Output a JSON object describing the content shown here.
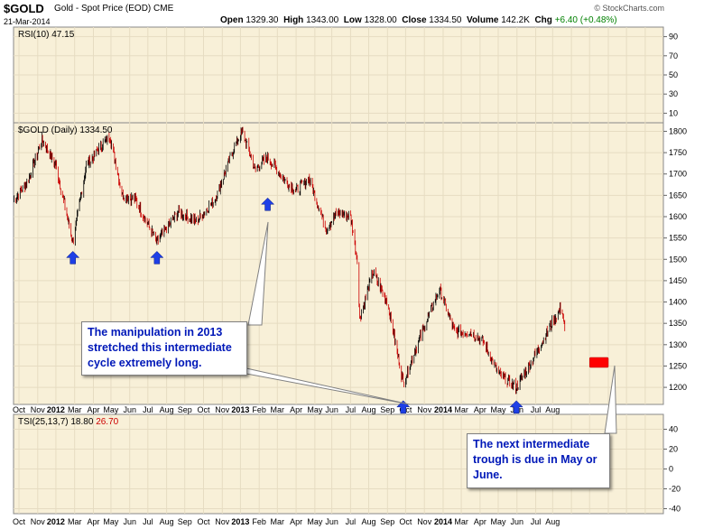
{
  "header": {
    "symbol": "$GOLD",
    "name": "Gold - Spot Price (EOD)",
    "exchange": "CME",
    "date": "21-Mar-2014",
    "open_label": "Open",
    "open": "1329.30",
    "high_label": "High",
    "high": "1343.00",
    "low_label": "Low",
    "low": "1328.00",
    "close_label": "Close",
    "close": "1334.50",
    "volume_label": "Volume",
    "volume": "142.2K",
    "chg_label": "Chg",
    "chg": "+6.40 (+0.48%)",
    "credit": "© StockCharts.com"
  },
  "colors": {
    "panel_bg": "#f8f0d8",
    "up": "#000000",
    "down": "#cc0000",
    "grid": "#e6dcc2",
    "arrow": "#1e3fe6",
    "target": "#ff0000",
    "tsi_line": "#000000",
    "tsi_signal": "#cc0000"
  },
  "annotations": {
    "note1": "The manipulation in 2013 stretched this intermediate cycle extremely long.",
    "note2": "The next intermediate trough is due in May or June."
  },
  "chart_data": [
    {
      "type": "line",
      "panel": "RSI",
      "label": "RSI(10) 47.15",
      "ylim": [
        0,
        100
      ],
      "yticks": [
        10,
        30,
        50,
        70,
        90
      ],
      "values": []
    },
    {
      "type": "candlestick",
      "panel": "price",
      "label": "$GOLD (Daily) 1334.50",
      "ylim": [
        1160,
        1820
      ],
      "yticks": [
        1200,
        1250,
        1300,
        1350,
        1400,
        1450,
        1500,
        1550,
        1600,
        1650,
        1700,
        1750,
        1800
      ],
      "x_ticks": [
        "Oct",
        "Nov",
        "2012",
        "Mar",
        "Apr",
        "May",
        "Jun",
        "Jul",
        "Aug",
        "Sep",
        "Oct",
        "Nov",
        "2013",
        "Feb",
        "Mar",
        "Apr",
        "May",
        "Jun",
        "Jul",
        "Aug",
        "Sep",
        "Oct",
        "Nov",
        "2014",
        "Mar",
        "Apr",
        "May",
        "Jun",
        "Jul",
        "Aug"
      ],
      "x_range": [
        "2011-09-22",
        "2014-08-31"
      ],
      "series": [
        {
          "x": [
            "2011-09-22",
            "2011-10-15",
            "2011-11-08",
            "2011-12-01",
            "2011-12-29",
            "2012-01-20",
            "2012-02-28",
            "2012-03-20",
            "2012-04-10",
            "2012-05-16",
            "2012-06-20",
            "2012-07-20",
            "2012-08-20",
            "2012-09-20",
            "2012-10-04",
            "2012-10-25",
            "2012-11-15",
            "2012-12-10",
            "2012-12-31",
            "2013-01-22",
            "2013-02-20",
            "2013-03-10",
            "2013-04-01",
            "2013-04-12",
            "2013-04-16",
            "2013-05-08",
            "2013-06-01",
            "2013-06-27",
            "2013-07-20",
            "2013-08-26",
            "2013-09-20",
            "2013-10-15",
            "2013-11-05",
            "2013-12-02",
            "2013-12-31",
            "2014-01-25",
            "2014-02-20",
            "2014-03-16",
            "2014-03-21"
          ],
          "y": [
            1640,
            1680,
            1780,
            1720,
            1540,
            1720,
            1790,
            1650,
            1640,
            1540,
            1610,
            1590,
            1640,
            1760,
            1800,
            1710,
            1740,
            1690,
            1660,
            1690,
            1570,
            1610,
            1600,
            1500,
            1360,
            1470,
            1400,
            1210,
            1300,
            1430,
            1330,
            1330,
            1310,
            1230,
            1200,
            1260,
            1330,
            1390,
            1334.5
          ]
        }
      ],
      "markers": [
        {
          "kind": "trough-arrow",
          "x": "2011-12-29",
          "y": 1540
        },
        {
          "kind": "trough-arrow",
          "x": "2012-05-16",
          "y": 1540
        },
        {
          "kind": "trough-arrow",
          "x": "2012-11-15",
          "y": 1665
        },
        {
          "kind": "trough-arrow",
          "x": "2013-06-27",
          "y": 1190
        },
        {
          "kind": "trough-arrow",
          "x": "2013-12-31",
          "y": 1190
        },
        {
          "kind": "target-box",
          "x_from": "2014-05-01",
          "x_to": "2014-06-01",
          "y": 1270
        }
      ]
    },
    {
      "type": "line",
      "panel": "TSI",
      "label": "TSI(25,13,7)",
      "line_value": "18.80",
      "signal_value": "26.70",
      "ylim": [
        -45,
        55
      ],
      "yticks": [
        -40,
        -20,
        0,
        20,
        40
      ],
      "values": []
    }
  ]
}
